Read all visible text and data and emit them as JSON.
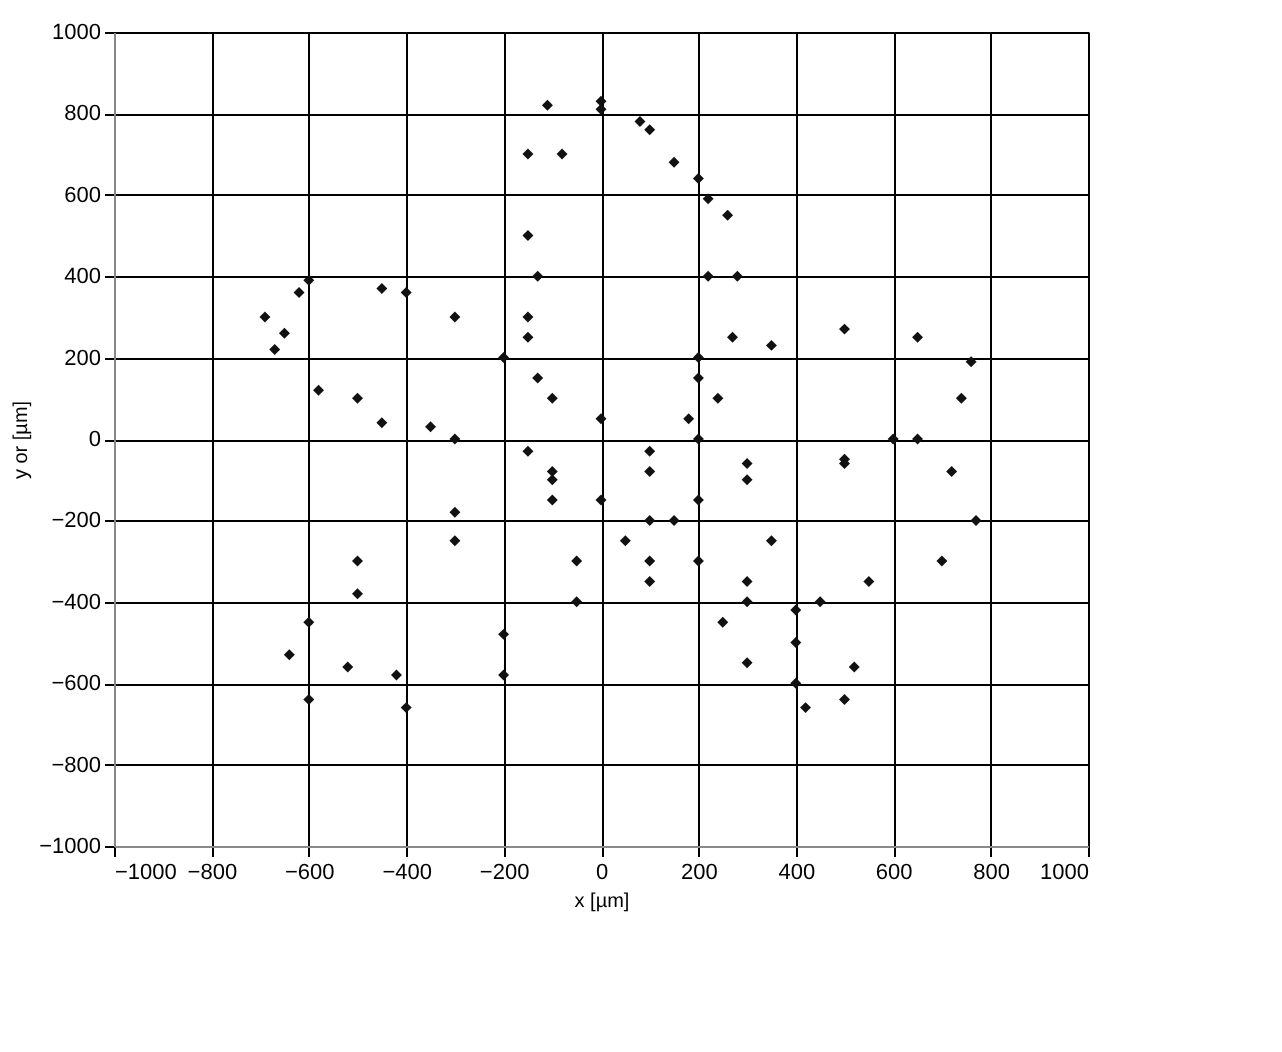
{
  "chart_data": {
    "type": "scatter",
    "xlabel": "x [µm]",
    "ylabel": "y or [µm]",
    "xlim": [
      -1000,
      1000
    ],
    "ylim": [
      -1000,
      1000
    ],
    "xticks": [
      -1000,
      -800,
      -600,
      -400,
      -200,
      0,
      200,
      400,
      600,
      800,
      1000
    ],
    "yticks": [
      -1000,
      -800,
      -600,
      -400,
      -200,
      0,
      200,
      400,
      600,
      800,
      1000
    ],
    "grid": true,
    "marker": "diamond",
    "series": [
      {
        "color": "#111111",
        "x": [
          -130,
          -150,
          -150,
          -150,
          -110,
          0,
          100,
          200,
          260,
          280,
          270,
          240,
          200,
          -100,
          -130,
          -80,
          0,
          80,
          150,
          220,
          220,
          200,
          180,
          -200,
          -300,
          -450,
          -600,
          -690,
          -670,
          -580,
          -450,
          -300,
          -150,
          -150,
          -400,
          -620,
          -650,
          -500,
          -350,
          0,
          200,
          350,
          500,
          650,
          760,
          740,
          650,
          500,
          300,
          100,
          100,
          300,
          500,
          600,
          720,
          770,
          700,
          550,
          400,
          300,
          200,
          100,
          0,
          100,
          250,
          400,
          500,
          520,
          450,
          350,
          200,
          -100,
          100,
          300,
          420,
          400,
          300,
          150,
          -100,
          -300,
          -500,
          -640,
          -600,
          -400,
          -200,
          -50,
          50,
          -50,
          -200,
          -420,
          -520,
          -600,
          -500,
          -300,
          -100
        ],
        "values": [
          150,
          300,
          500,
          700,
          820,
          830,
          760,
          640,
          550,
          400,
          250,
          100,
          0,
          100,
          400,
          700,
          810,
          780,
          680,
          590,
          400,
          200,
          50,
          200,
          300,
          370,
          390,
          300,
          220,
          120,
          40,
          0,
          -30,
          250,
          360,
          360,
          260,
          100,
          30,
          50,
          150,
          230,
          270,
          250,
          190,
          100,
          0,
          -50,
          -60,
          -30,
          -80,
          -100,
          -60,
          0,
          -80,
          -200,
          -300,
          -350,
          -420,
          -400,
          -300,
          -200,
          -150,
          -300,
          -450,
          -600,
          -640,
          -560,
          -400,
          -250,
          -150,
          -100,
          -350,
          -550,
          -660,
          -500,
          -350,
          -200,
          -150,
          -250,
          -380,
          -530,
          -640,
          -660,
          -580,
          -400,
          -250,
          -300,
          -480,
          -580,
          -560,
          -450,
          -300,
          -180,
          -80
        ]
      }
    ]
  }
}
